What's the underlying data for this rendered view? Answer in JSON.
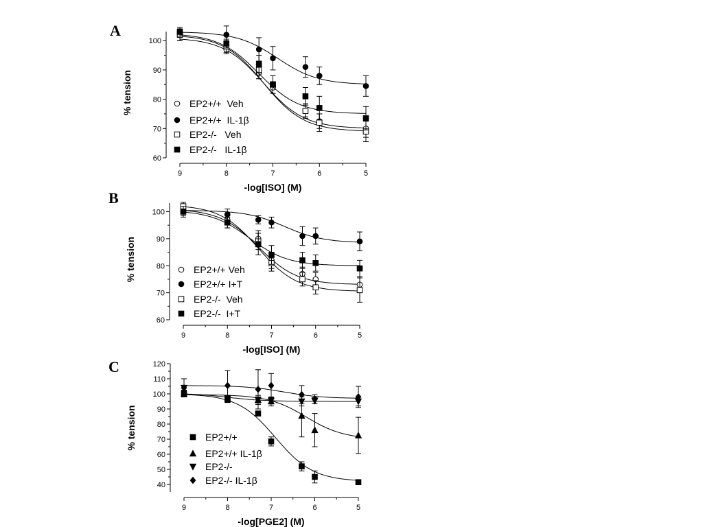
{
  "chart_data": [
    {
      "panel": "A",
      "type": "scatter",
      "xlabel": "-log[ISO] (M)",
      "ylabel": "% tension",
      "xlim": [
        9,
        5
      ],
      "ylim": [
        60,
        105
      ],
      "xticks": [
        9,
        8,
        7,
        6,
        5
      ],
      "yticks": [
        60,
        70,
        80,
        90,
        100
      ],
      "legend_position": "lower-left",
      "series": [
        {
          "name": "EP2+/+  Veh",
          "marker": "open-circle",
          "x": [
            9,
            8,
            7.3,
            7,
            6.3,
            6,
            5
          ],
          "y": [
            102,
            97,
            89,
            84,
            76,
            72.5,
            70
          ],
          "err": [
            2,
            1.5,
            2,
            2,
            2,
            2.5,
            3
          ],
          "fit": {
            "top": 101,
            "bottom": 70,
            "ec50": 7.2
          }
        },
        {
          "name": "EP2+/+  IL-1β",
          "marker": "filled-circle",
          "x": [
            9,
            8,
            7.3,
            7,
            6.3,
            6,
            5
          ],
          "y": [
            103,
            102,
            97,
            94,
            91,
            88,
            84.5
          ],
          "err": [
            1.5,
            3,
            4,
            4,
            3.5,
            3,
            3.5
          ],
          "fit": {
            "top": 103,
            "bottom": 85,
            "ec50": 6.9
          }
        },
        {
          "name": "EP2-/-   Veh",
          "marker": "open-square",
          "x": [
            9,
            8,
            7.3,
            7,
            6.3,
            6,
            5
          ],
          "y": [
            102,
            98,
            90,
            85,
            76,
            72,
            69
          ],
          "err": [
            2,
            2,
            3,
            3,
            2.5,
            3,
            3.5
          ],
          "fit": {
            "top": 102,
            "bottom": 69,
            "ec50": 7.2
          }
        },
        {
          "name": "EP2-/-   IL-1β",
          "marker": "filled-square",
          "x": [
            9,
            8,
            7.3,
            7,
            6.3,
            6,
            5
          ],
          "y": [
            103,
            99,
            92,
            85,
            81,
            77,
            73.5
          ],
          "err": [
            1.5,
            1.5,
            3,
            3,
            3,
            4,
            4
          ],
          "fit": {
            "top": 102.5,
            "bottom": 75,
            "ec50": 7.3
          }
        }
      ]
    },
    {
      "panel": "B",
      "type": "scatter",
      "xlabel": "-log[ISO] (M)",
      "ylabel": "% tension",
      "xlim": [
        9,
        5
      ],
      "ylim": [
        60,
        105
      ],
      "xticks": [
        9,
        8,
        7,
        6,
        5
      ],
      "yticks": [
        60,
        70,
        80,
        90,
        100
      ],
      "legend_position": "lower-left",
      "series": [
        {
          "name": "EP2+/+ Veh",
          "marker": "open-circle",
          "x": [
            9,
            8,
            7.3,
            7,
            6.3,
            6,
            5
          ],
          "y": [
            101,
            97,
            90,
            82,
            77,
            75,
            73
          ],
          "err": [
            1.5,
            1.5,
            3,
            3,
            2.5,
            2.5,
            3
          ],
          "fit": {
            "top": 101,
            "bottom": 73,
            "ec50": 7.3
          }
        },
        {
          "name": "EP2+/+ I+T",
          "marker": "filled-circle",
          "x": [
            9,
            8,
            7.3,
            7,
            6.3,
            6,
            5
          ],
          "y": [
            100,
            99,
            97,
            96,
            91,
            91,
            89
          ],
          "err": [
            1.5,
            2,
            1.5,
            2,
            3.5,
            3,
            3.5
          ],
          "fit": {
            "top": 100.5,
            "bottom": 88.5,
            "ec50": 6.7
          }
        },
        {
          "name": "EP2-/-  Veh",
          "marker": "open-square",
          "x": [
            9,
            8,
            7.3,
            7,
            6.3,
            6,
            5
          ],
          "y": [
            102,
            96,
            89,
            81,
            75,
            72,
            71
          ],
          "err": [
            1.5,
            2,
            3,
            3,
            2.5,
            2.5,
            4.5
          ],
          "fit": {
            "top": 102.5,
            "bottom": 70.5,
            "ec50": 7.3
          }
        },
        {
          "name": "EP2-/-  I+T",
          "marker": "filled-square",
          "x": [
            9,
            8,
            7.3,
            7,
            6.3,
            6,
            5
          ],
          "y": [
            100,
            96,
            88,
            84,
            82,
            81,
            79
          ],
          "err": [
            2,
            2,
            4,
            3.5,
            3,
            3,
            3
          ],
          "fit": {
            "top": 100.5,
            "bottom": 80,
            "ec50": 7.5
          }
        }
      ]
    },
    {
      "panel": "C",
      "type": "scatter",
      "xlabel": "-log[PGE2] (M)",
      "ylabel": "% tension",
      "xlim": [
        9,
        5
      ],
      "ylim": [
        35,
        120
      ],
      "xticks": [
        9,
        8,
        7,
        6,
        5
      ],
      "yticks": [
        40,
        50,
        60,
        70,
        80,
        90,
        100,
        110,
        120
      ],
      "legend_position": "lower-left",
      "series": [
        {
          "name": "EP2+/+",
          "marker": "filled-square",
          "x": [
            9,
            8,
            7.3,
            7,
            6.3,
            6,
            5
          ],
          "y": [
            100,
            96,
            87,
            68.5,
            52,
            45,
            41.5
          ],
          "err": [
            2,
            1.5,
            1,
            3,
            3,
            4,
            1
          ],
          "fit": {
            "top": 100,
            "bottom": 42,
            "ec50": 6.9
          }
        },
        {
          "name": "EP2+/+ IL-1β",
          "marker": "filled-triangle-up",
          "x": [
            9,
            8,
            7.3,
            7,
            6.3,
            6,
            5
          ],
          "y": [
            100,
            97,
            96,
            95,
            85.5,
            76,
            72.5
          ],
          "err": [
            2,
            2,
            3,
            3,
            14,
            11,
            12
          ],
          "fit": {
            "top": 99.5,
            "bottom": 70,
            "ec50": 6.2
          }
        },
        {
          "name": "EP2-/-",
          "marker": "filled-triangle-down",
          "x": [
            9,
            8,
            7.3,
            7,
            6.3,
            6,
            5
          ],
          "y": [
            104,
            97,
            96,
            95.5,
            95,
            95.5,
            95
          ],
          "err": [
            1.5,
            2,
            2,
            2,
            3,
            2,
            3
          ],
          "fit": {
            "top": 100.5,
            "bottom": 95,
            "ec50": 8.0
          }
        },
        {
          "name": "EP2-/- IL-1β",
          "marker": "filled-diamond",
          "x": [
            9,
            8,
            7.3,
            7,
            6.3,
            6,
            5
          ],
          "y": [
            104,
            105.5,
            103,
            105.5,
            99.5,
            96.5,
            98
          ],
          "err": [
            6,
            10,
            13,
            8,
            6,
            3,
            7
          ],
          "fit": {
            "top": 105.5,
            "bottom": 97,
            "ec50": 6.7
          }
        }
      ]
    }
  ]
}
